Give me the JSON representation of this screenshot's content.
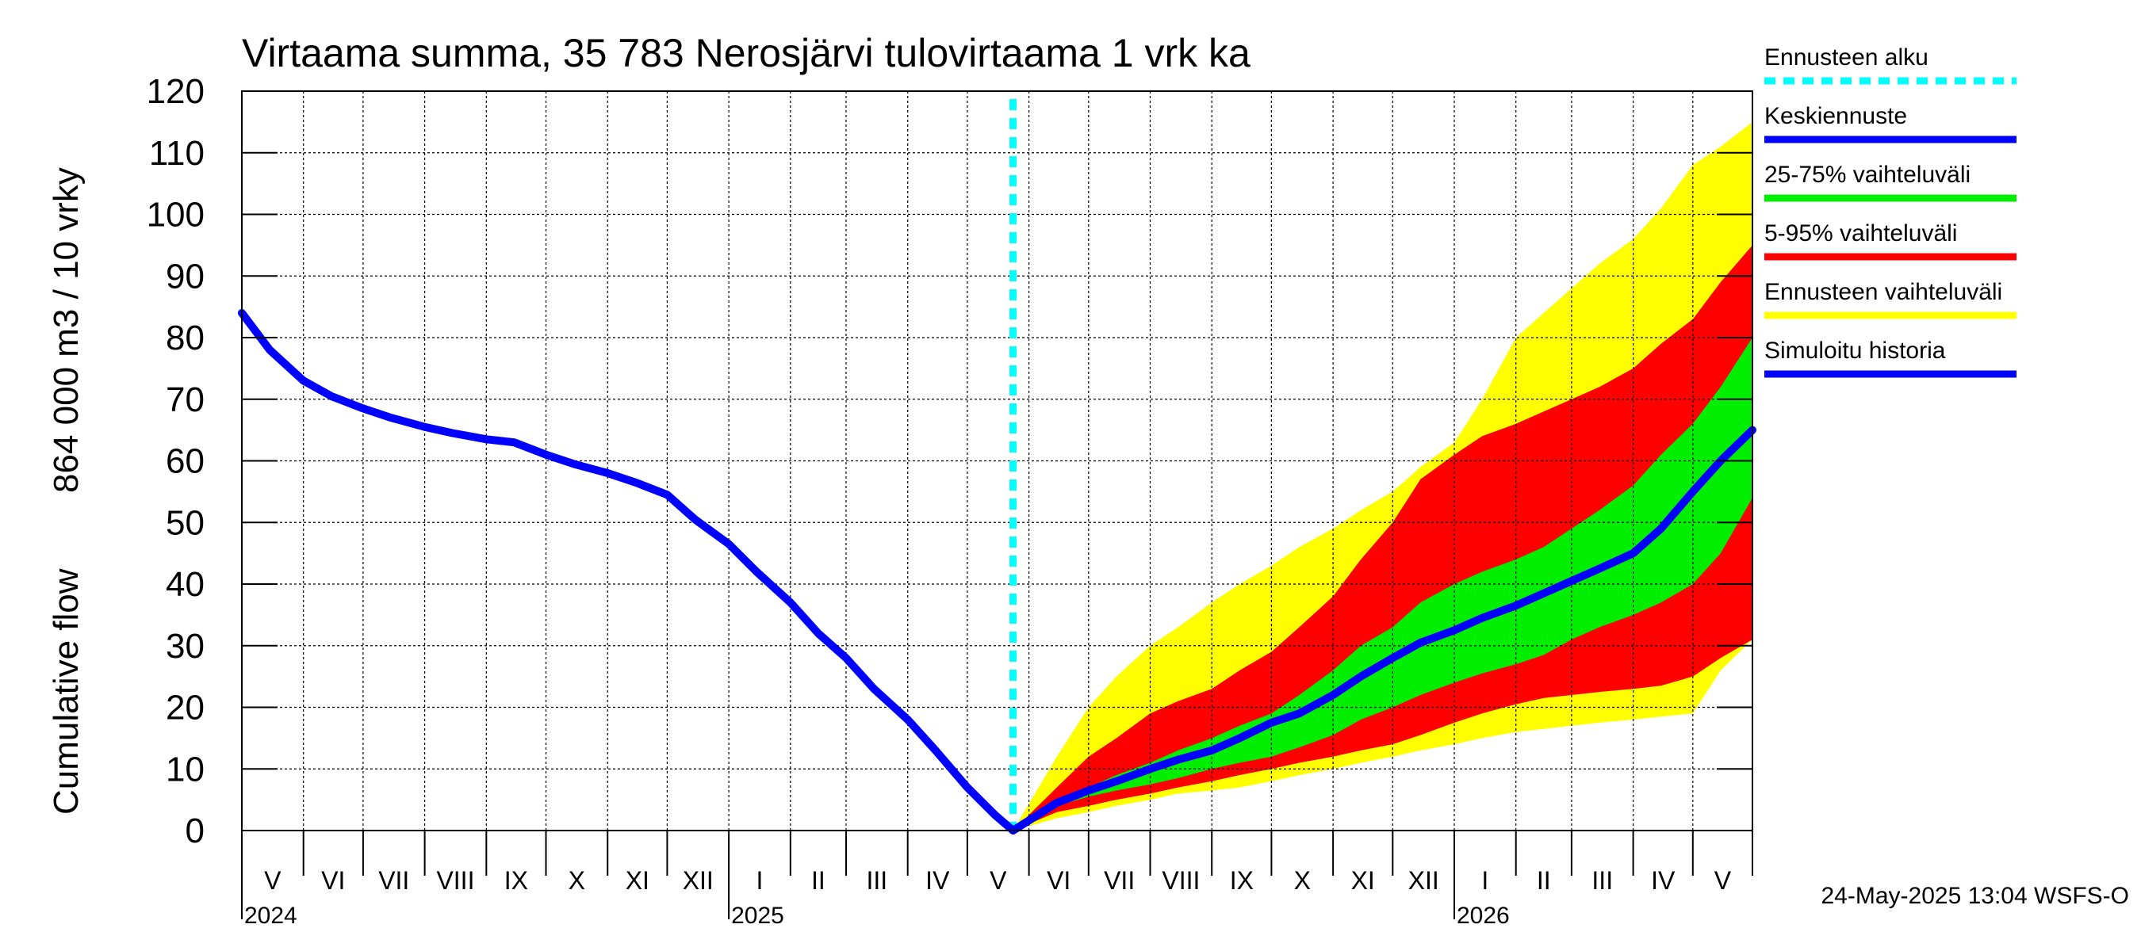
{
  "chart_data": {
    "type": "area",
    "title": "Virtaama summa, 35 783 Nerosjärvi tulovirtaama 1 vrk ka",
    "ylabel_line1": "Cumulative flow",
    "ylabel_line2": "864 000 m3 / 10 vrky",
    "ylim": [
      0,
      120
    ],
    "yticks": [
      0,
      10,
      20,
      30,
      40,
      50,
      60,
      70,
      80,
      90,
      100,
      110,
      120
    ],
    "grid": true,
    "legend_position": "right",
    "x_start": "2024-05-01",
    "x_end": "2026-05-31",
    "forecast_start": "2025-05-24",
    "months": [
      {
        "label": "V",
        "start": "2024-05-01"
      },
      {
        "label": "VI",
        "start": "2024-06-01"
      },
      {
        "label": "VII",
        "start": "2024-07-01"
      },
      {
        "label": "VIII",
        "start": "2024-08-01"
      },
      {
        "label": "IX",
        "start": "2024-09-01"
      },
      {
        "label": "X",
        "start": "2024-10-01"
      },
      {
        "label": "XI",
        "start": "2024-11-01"
      },
      {
        "label": "XII",
        "start": "2024-12-01"
      },
      {
        "label": "I",
        "start": "2025-01-01"
      },
      {
        "label": "II",
        "start": "2025-02-01"
      },
      {
        "label": "III",
        "start": "2025-03-01"
      },
      {
        "label": "IV",
        "start": "2025-04-01"
      },
      {
        "label": "V",
        "start": "2025-05-01"
      },
      {
        "label": "VI",
        "start": "2025-06-01"
      },
      {
        "label": "VII",
        "start": "2025-07-01"
      },
      {
        "label": "VIII",
        "start": "2025-08-01"
      },
      {
        "label": "IX",
        "start": "2025-09-01"
      },
      {
        "label": "X",
        "start": "2025-10-01"
      },
      {
        "label": "XI",
        "start": "2025-11-01"
      },
      {
        "label": "XII",
        "start": "2025-12-01"
      },
      {
        "label": "I",
        "start": "2026-01-01"
      },
      {
        "label": "II",
        "start": "2026-02-01"
      },
      {
        "label": "III",
        "start": "2026-03-01"
      },
      {
        "label": "IV",
        "start": "2026-04-01"
      },
      {
        "label": "V",
        "start": "2026-05-01"
      }
    ],
    "years": [
      {
        "label": "2024",
        "at": "2024-05-01"
      },
      {
        "label": "2025",
        "at": "2025-01-01"
      },
      {
        "label": "2026",
        "at": "2026-01-01"
      }
    ],
    "x": [
      "2025-05-24",
      "2025-06-15",
      "2025-07-01",
      "2025-07-15",
      "2025-08-01",
      "2025-08-15",
      "2025-09-01",
      "2025-09-15",
      "2025-10-01",
      "2025-10-15",
      "2025-11-01",
      "2025-11-15",
      "2025-12-01",
      "2025-12-15",
      "2026-01-01",
      "2026-01-15",
      "2026-02-01",
      "2026-02-15",
      "2026-03-01",
      "2026-03-15",
      "2026-04-01",
      "2026-04-15",
      "2026-05-01",
      "2026-05-15",
      "2026-05-31"
    ],
    "series": [
      {
        "name": "Ennusteen vaihteluväli",
        "role": "band",
        "color": "#ffff00",
        "upper": [
          0,
          12,
          20,
          25,
          30,
          33,
          37,
          40,
          43,
          46,
          49,
          52,
          55,
          59,
          63,
          70,
          80,
          84,
          88,
          92,
          96,
          101,
          108,
          111,
          115
        ],
        "lower": [
          0,
          2,
          3,
          4,
          5,
          6,
          6.5,
          7,
          8,
          9,
          10,
          11,
          12,
          13,
          14,
          15,
          16,
          16.5,
          17,
          17.5,
          18,
          18.5,
          19,
          26,
          31
        ]
      },
      {
        "name": "5-95% vaihteluväli",
        "role": "band",
        "color": "#ff0000",
        "upper": [
          0,
          7,
          12,
          15,
          19,
          21,
          23,
          26,
          29,
          33,
          38,
          44,
          50,
          57,
          61,
          64,
          66,
          68,
          70,
          72,
          75,
          79,
          83,
          89,
          95
        ],
        "lower": [
          0,
          3,
          4,
          5,
          6,
          7,
          8,
          9,
          10,
          11,
          12,
          13,
          14,
          15.5,
          17.5,
          19,
          20.5,
          21.5,
          22,
          22.5,
          23,
          23.5,
          25,
          28,
          31
        ]
      },
      {
        "name": "25-75% vaihteluväli",
        "role": "band",
        "color": "#00ee00",
        "upper": [
          0,
          5,
          7,
          9,
          11,
          13,
          15,
          17,
          19,
          22,
          26,
          30,
          33,
          37,
          40,
          42,
          44,
          46,
          49,
          52,
          56,
          61,
          66,
          72,
          80
        ],
        "lower": [
          0,
          4,
          5.5,
          6.5,
          7.5,
          8.5,
          10,
          11,
          12,
          13.5,
          15.5,
          18,
          20,
          22,
          24,
          25.5,
          27,
          28.5,
          31,
          33,
          35,
          37,
          40,
          45,
          54
        ]
      },
      {
        "name": "Keskiennuste",
        "role": "line",
        "color": "#0000ff",
        "values": [
          0,
          4.5,
          6.5,
          8,
          10,
          11.5,
          13,
          15,
          17.5,
          19,
          22,
          25,
          28,
          30.5,
          32.5,
          34.5,
          36.5,
          38.5,
          40.5,
          42.5,
          45,
          49,
          55,
          60,
          65
        ]
      },
      {
        "name": "Simuloitu historia",
        "role": "line",
        "color": "#0000ff",
        "x": [
          "2024-05-01",
          "2024-05-15",
          "2024-06-01",
          "2024-06-15",
          "2024-07-01",
          "2024-07-15",
          "2024-08-01",
          "2024-08-15",
          "2024-09-01",
          "2024-09-15",
          "2024-10-01",
          "2024-10-15",
          "2024-11-01",
          "2024-11-15",
          "2024-12-01",
          "2024-12-15",
          "2025-01-01",
          "2025-01-15",
          "2025-02-01",
          "2025-02-15",
          "2025-03-01",
          "2025-03-15",
          "2025-04-01",
          "2025-04-15",
          "2025-05-01",
          "2025-05-15",
          "2025-05-24"
        ],
        "values": [
          84,
          78,
          73,
          70.5,
          68.5,
          67,
          65.5,
          64.5,
          63.5,
          63,
          61,
          59.5,
          58,
          56.5,
          54.5,
          50.5,
          46.5,
          42,
          37,
          32,
          28,
          23,
          18,
          13,
          7,
          2.5,
          0
        ]
      }
    ],
    "legend": [
      {
        "label": "Ennusteen alku",
        "color": "#00ffff",
        "style": "dotted"
      },
      {
        "label": "Keskiennuste",
        "color": "#0000ff",
        "style": "solid"
      },
      {
        "label": "25-75% vaihteluväli",
        "color": "#00ee00",
        "style": "solid"
      },
      {
        "label": "5-95% vaihteluväli",
        "color": "#ff0000",
        "style": "solid"
      },
      {
        "label": "Ennusteen vaihteluväli",
        "color": "#ffff00",
        "style": "solid"
      },
      {
        "label": "Simuloitu historia",
        "color": "#0000ff",
        "style": "solid"
      }
    ],
    "footer": "24-May-2025 13:04 WSFS-O"
  }
}
